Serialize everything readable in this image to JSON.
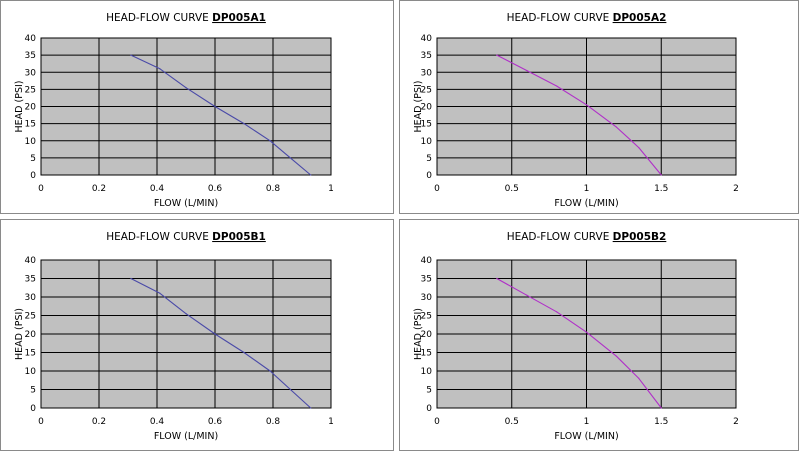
{
  "chart_data": [
    {
      "type": "line",
      "title_prefix": "HEAD-FLOW CURVE",
      "model": "DP005A1",
      "xlabel": "FLOW (L/MIN)",
      "ylabel": "HEAD (PSI)",
      "xlim": [
        0,
        1
      ],
      "ylim": [
        0,
        40
      ],
      "xticks": [
        "0",
        "0.2",
        "0.4",
        "0.6",
        "0.8",
        "1"
      ],
      "yticks": [
        "0",
        "5",
        "10",
        "15",
        "20",
        "25",
        "30",
        "35",
        "40"
      ],
      "series_color": "#4a4aa8",
      "grid": true,
      "plot_background": "#c0c0c0",
      "x": [
        0.31,
        0.41,
        0.5,
        0.6,
        0.7,
        0.79,
        0.86,
        0.93
      ],
      "y": [
        35,
        31,
        25.5,
        20,
        15,
        10,
        5,
        0
      ]
    },
    {
      "type": "line",
      "title_prefix": "HEAD-FLOW CURVE",
      "model": "DP005A2",
      "xlabel": "FLOW (L/MIN)",
      "ylabel": "HEAD (PSI)",
      "xlim": [
        0,
        2
      ],
      "ylim": [
        0,
        40
      ],
      "xticks": [
        "0",
        "0.5",
        "1",
        "1.5",
        "2"
      ],
      "yticks": [
        "0",
        "5",
        "10",
        "15",
        "20",
        "25",
        "30",
        "35",
        "40"
      ],
      "series_color": "#b030c8",
      "grid": true,
      "plot_background": "#c0c0c0",
      "x": [
        0.4,
        0.6,
        0.8,
        1.0,
        1.2,
        1.35,
        1.5
      ],
      "y": [
        35,
        30.5,
        26,
        20.5,
        14,
        8,
        0
      ]
    },
    {
      "type": "line",
      "title_prefix": "HEAD-FLOW CURVE",
      "model": "DP005B1",
      "xlabel": "FLOW (L/MIN)",
      "ylabel": "HEAD (PSI)",
      "xlim": [
        0,
        1
      ],
      "ylim": [
        0,
        40
      ],
      "xticks": [
        "0",
        "0.2",
        "0.4",
        "0.6",
        "0.8",
        "1"
      ],
      "yticks": [
        "0",
        "5",
        "10",
        "15",
        "20",
        "25",
        "30",
        "35",
        "40"
      ],
      "series_color": "#4a4aa8",
      "grid": true,
      "plot_background": "#c0c0c0",
      "x": [
        0.31,
        0.41,
        0.5,
        0.6,
        0.7,
        0.79,
        0.86,
        0.93
      ],
      "y": [
        35,
        31,
        25.5,
        20,
        15,
        10,
        5,
        0
      ]
    },
    {
      "type": "line",
      "title_prefix": "HEAD-FLOW CURVE",
      "model": "DP005B2",
      "xlabel": "FLOW (L/MIN)",
      "ylabel": "HEAD (PSI)",
      "xlim": [
        0,
        2
      ],
      "ylim": [
        0,
        40
      ],
      "xticks": [
        "0",
        "0.5",
        "1",
        "1.5",
        "2"
      ],
      "yticks": [
        "0",
        "5",
        "10",
        "15",
        "20",
        "25",
        "30",
        "35",
        "40"
      ],
      "series_color": "#b030c8",
      "grid": true,
      "plot_background": "#c0c0c0",
      "x": [
        0.4,
        0.6,
        0.8,
        1.0,
        1.2,
        1.35,
        1.5
      ],
      "y": [
        35,
        30.5,
        26,
        20.5,
        14,
        8,
        0
      ]
    }
  ]
}
